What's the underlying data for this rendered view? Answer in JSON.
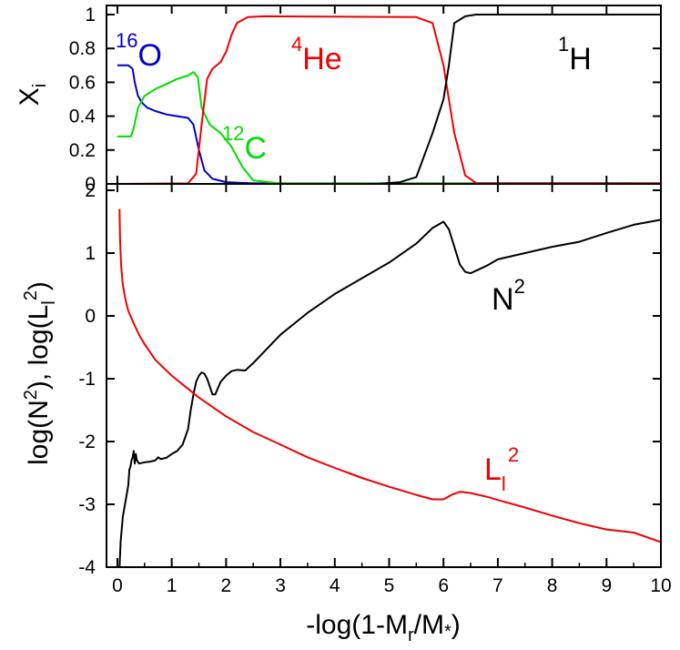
{
  "chart_data": [
    {
      "type": "line",
      "panel": "top",
      "ylabel": "X",
      "ylabel_sub": "i",
      "xlim": [
        0,
        10
      ],
      "ylim": [
        0,
        1
      ],
      "yticks": [
        0,
        0.2,
        0.4,
        0.6,
        0.8,
        1
      ],
      "ytick_labels": [
        "0",
        "0.2",
        "0.4",
        "0.6",
        "0.8",
        "1"
      ],
      "series": [
        {
          "name": "16O",
          "color": "#0000cc",
          "x": [
            0,
            0.2,
            0.28,
            0.32,
            0.38,
            0.45,
            0.55,
            0.7,
            0.9,
            1.1,
            1.3,
            1.4,
            1.5,
            1.6,
            1.75,
            2.0,
            2.5,
            10
          ],
          "y": [
            0.7,
            0.7,
            0.68,
            0.6,
            0.52,
            0.48,
            0.45,
            0.43,
            0.41,
            0.4,
            0.39,
            0.35,
            0.2,
            0.08,
            0.03,
            0.01,
            0.003,
            0.003
          ]
        },
        {
          "name": "12C",
          "color": "#00dd00",
          "x": [
            0,
            0.25,
            0.3,
            0.38,
            0.5,
            0.7,
            0.9,
            1.1,
            1.3,
            1.4,
            1.48,
            1.55,
            1.7,
            1.9,
            2.1,
            2.3,
            2.5,
            3.0,
            10
          ],
          "y": [
            0.28,
            0.28,
            0.33,
            0.45,
            0.52,
            0.56,
            0.59,
            0.62,
            0.64,
            0.66,
            0.63,
            0.45,
            0.35,
            0.3,
            0.22,
            0.1,
            0.02,
            0.003,
            0.003
          ]
        },
        {
          "name": "4He",
          "color": "#ee0000",
          "x": [
            0,
            1.3,
            1.45,
            1.55,
            1.65,
            1.75,
            1.9,
            2.0,
            2.1,
            2.2,
            2.4,
            2.7,
            5.5,
            5.8,
            6.0,
            6.1,
            6.2,
            6.4,
            6.6,
            10
          ],
          "y": [
            0,
            0.003,
            0.06,
            0.35,
            0.62,
            0.68,
            0.72,
            0.78,
            0.88,
            0.95,
            0.985,
            0.99,
            0.985,
            0.95,
            0.7,
            0.5,
            0.3,
            0.05,
            0.005,
            0.003
          ]
        },
        {
          "name": "1H",
          "color": "#000000",
          "x": [
            0,
            4.8,
            5.2,
            5.5,
            5.8,
            6.0,
            6.1,
            6.2,
            6.4,
            6.6,
            10
          ],
          "y": [
            0,
            0,
            0.01,
            0.04,
            0.3,
            0.5,
            0.7,
            0.95,
            0.99,
            1.0,
            1.0
          ]
        }
      ],
      "annotations": [
        {
          "id": "o16",
          "sup": "16",
          "base": "O",
          "color": "#0000cc"
        },
        {
          "id": "he4",
          "sup": "4",
          "base": "He",
          "color": "#ee0000"
        },
        {
          "id": "c12",
          "sup": "12",
          "base": "C",
          "color": "#00dd00"
        },
        {
          "id": "h1",
          "sup": "1",
          "base": "H",
          "color": "#000000"
        }
      ]
    },
    {
      "type": "line",
      "panel": "bottom",
      "xlabel": "-log(1-M",
      "xlabel_sub": "r",
      "xlabel_tail": "/M",
      "xlabel_star": "*",
      "xlabel_end": ")",
      "ylabel": "log(N²), log(Lₗ²)",
      "ylabel_parts": [
        "log(N",
        "2",
        "), log(L",
        "l",
        "2",
        ")"
      ],
      "xlim": [
        -0.2,
        10
      ],
      "ylim": [
        -4,
        2
      ],
      "xticks": [
        0,
        1,
        2,
        3,
        4,
        5,
        6,
        7,
        8,
        9,
        10
      ],
      "xtick_labels": [
        "0",
        "1",
        "2",
        "3",
        "4",
        "5",
        "6",
        "7",
        "8",
        "9",
        "10"
      ],
      "yticks": [
        -4,
        -3,
        -2,
        -1,
        0,
        1,
        2
      ],
      "ytick_labels": [
        "-4",
        "-3",
        "-2",
        "-1",
        "0",
        "1",
        "2"
      ],
      "series": [
        {
          "name": "N2",
          "color": "#000000",
          "x": [
            0.04,
            0.06,
            0.1,
            0.15,
            0.2,
            0.22,
            0.24,
            0.26,
            0.28,
            0.3,
            0.32,
            0.34,
            0.36,
            0.4,
            0.5,
            0.6,
            0.7,
            0.75,
            0.8,
            0.9,
            1.0,
            1.1,
            1.2,
            1.3,
            1.35,
            1.4,
            1.45,
            1.5,
            1.55,
            1.6,
            1.65,
            1.7,
            1.75,
            1.8,
            1.85,
            1.9,
            2.0,
            2.1,
            2.2,
            2.35,
            2.5,
            3.0,
            3.5,
            4.0,
            4.5,
            5.0,
            5.5,
            5.8,
            6.0,
            6.1,
            6.2,
            6.3,
            6.4,
            6.5,
            6.6,
            6.8,
            7.0,
            7.5,
            8.0,
            8.5,
            9.0,
            9.5,
            10.0
          ],
          "y": [
            -4.0,
            -3.6,
            -3.2,
            -2.95,
            -2.7,
            -2.45,
            -2.4,
            -2.3,
            -2.25,
            -2.15,
            -2.35,
            -2.2,
            -2.3,
            -2.35,
            -2.33,
            -2.32,
            -2.3,
            -2.25,
            -2.28,
            -2.26,
            -2.2,
            -2.15,
            -2.05,
            -1.8,
            -1.5,
            -1.25,
            -1.05,
            -0.95,
            -0.9,
            -0.92,
            -1.0,
            -1.12,
            -1.25,
            -1.25,
            -1.15,
            -1.05,
            -0.95,
            -0.88,
            -0.86,
            -0.87,
            -0.75,
            -0.3,
            0.05,
            0.35,
            0.6,
            0.85,
            1.15,
            1.4,
            1.5,
            1.38,
            1.1,
            0.82,
            0.7,
            0.68,
            0.72,
            0.8,
            0.9,
            1.0,
            1.1,
            1.18,
            1.32,
            1.45,
            1.53
          ]
        },
        {
          "name": "Ll2",
          "color": "#ee0000",
          "x": [
            0.04,
            0.05,
            0.07,
            0.1,
            0.15,
            0.2,
            0.3,
            0.4,
            0.5,
            0.7,
            1.0,
            1.5,
            2.0,
            2.5,
            3.0,
            3.5,
            4.0,
            4.5,
            5.0,
            5.5,
            5.8,
            6.0,
            6.15,
            6.3,
            6.5,
            6.8,
            7.0,
            7.5,
            8.0,
            8.5,
            9.0,
            9.5,
            10.0
          ],
          "y": [
            1.7,
            1.2,
            0.8,
            0.5,
            0.25,
            0.08,
            -0.12,
            -0.3,
            -0.45,
            -0.7,
            -0.95,
            -1.3,
            -1.6,
            -1.85,
            -2.05,
            -2.25,
            -2.42,
            -2.58,
            -2.72,
            -2.85,
            -2.92,
            -2.92,
            -2.85,
            -2.8,
            -2.82,
            -2.88,
            -2.93,
            -3.05,
            -3.18,
            -3.3,
            -3.4,
            -3.45,
            -3.6
          ]
        }
      ],
      "annotations": [
        {
          "id": "n2",
          "base": "N",
          "sup": "2",
          "color": "#000000"
        },
        {
          "id": "ll2",
          "base": "L",
          "sub": "l",
          "sup": "2",
          "color": "#ee0000"
        }
      ]
    }
  ]
}
